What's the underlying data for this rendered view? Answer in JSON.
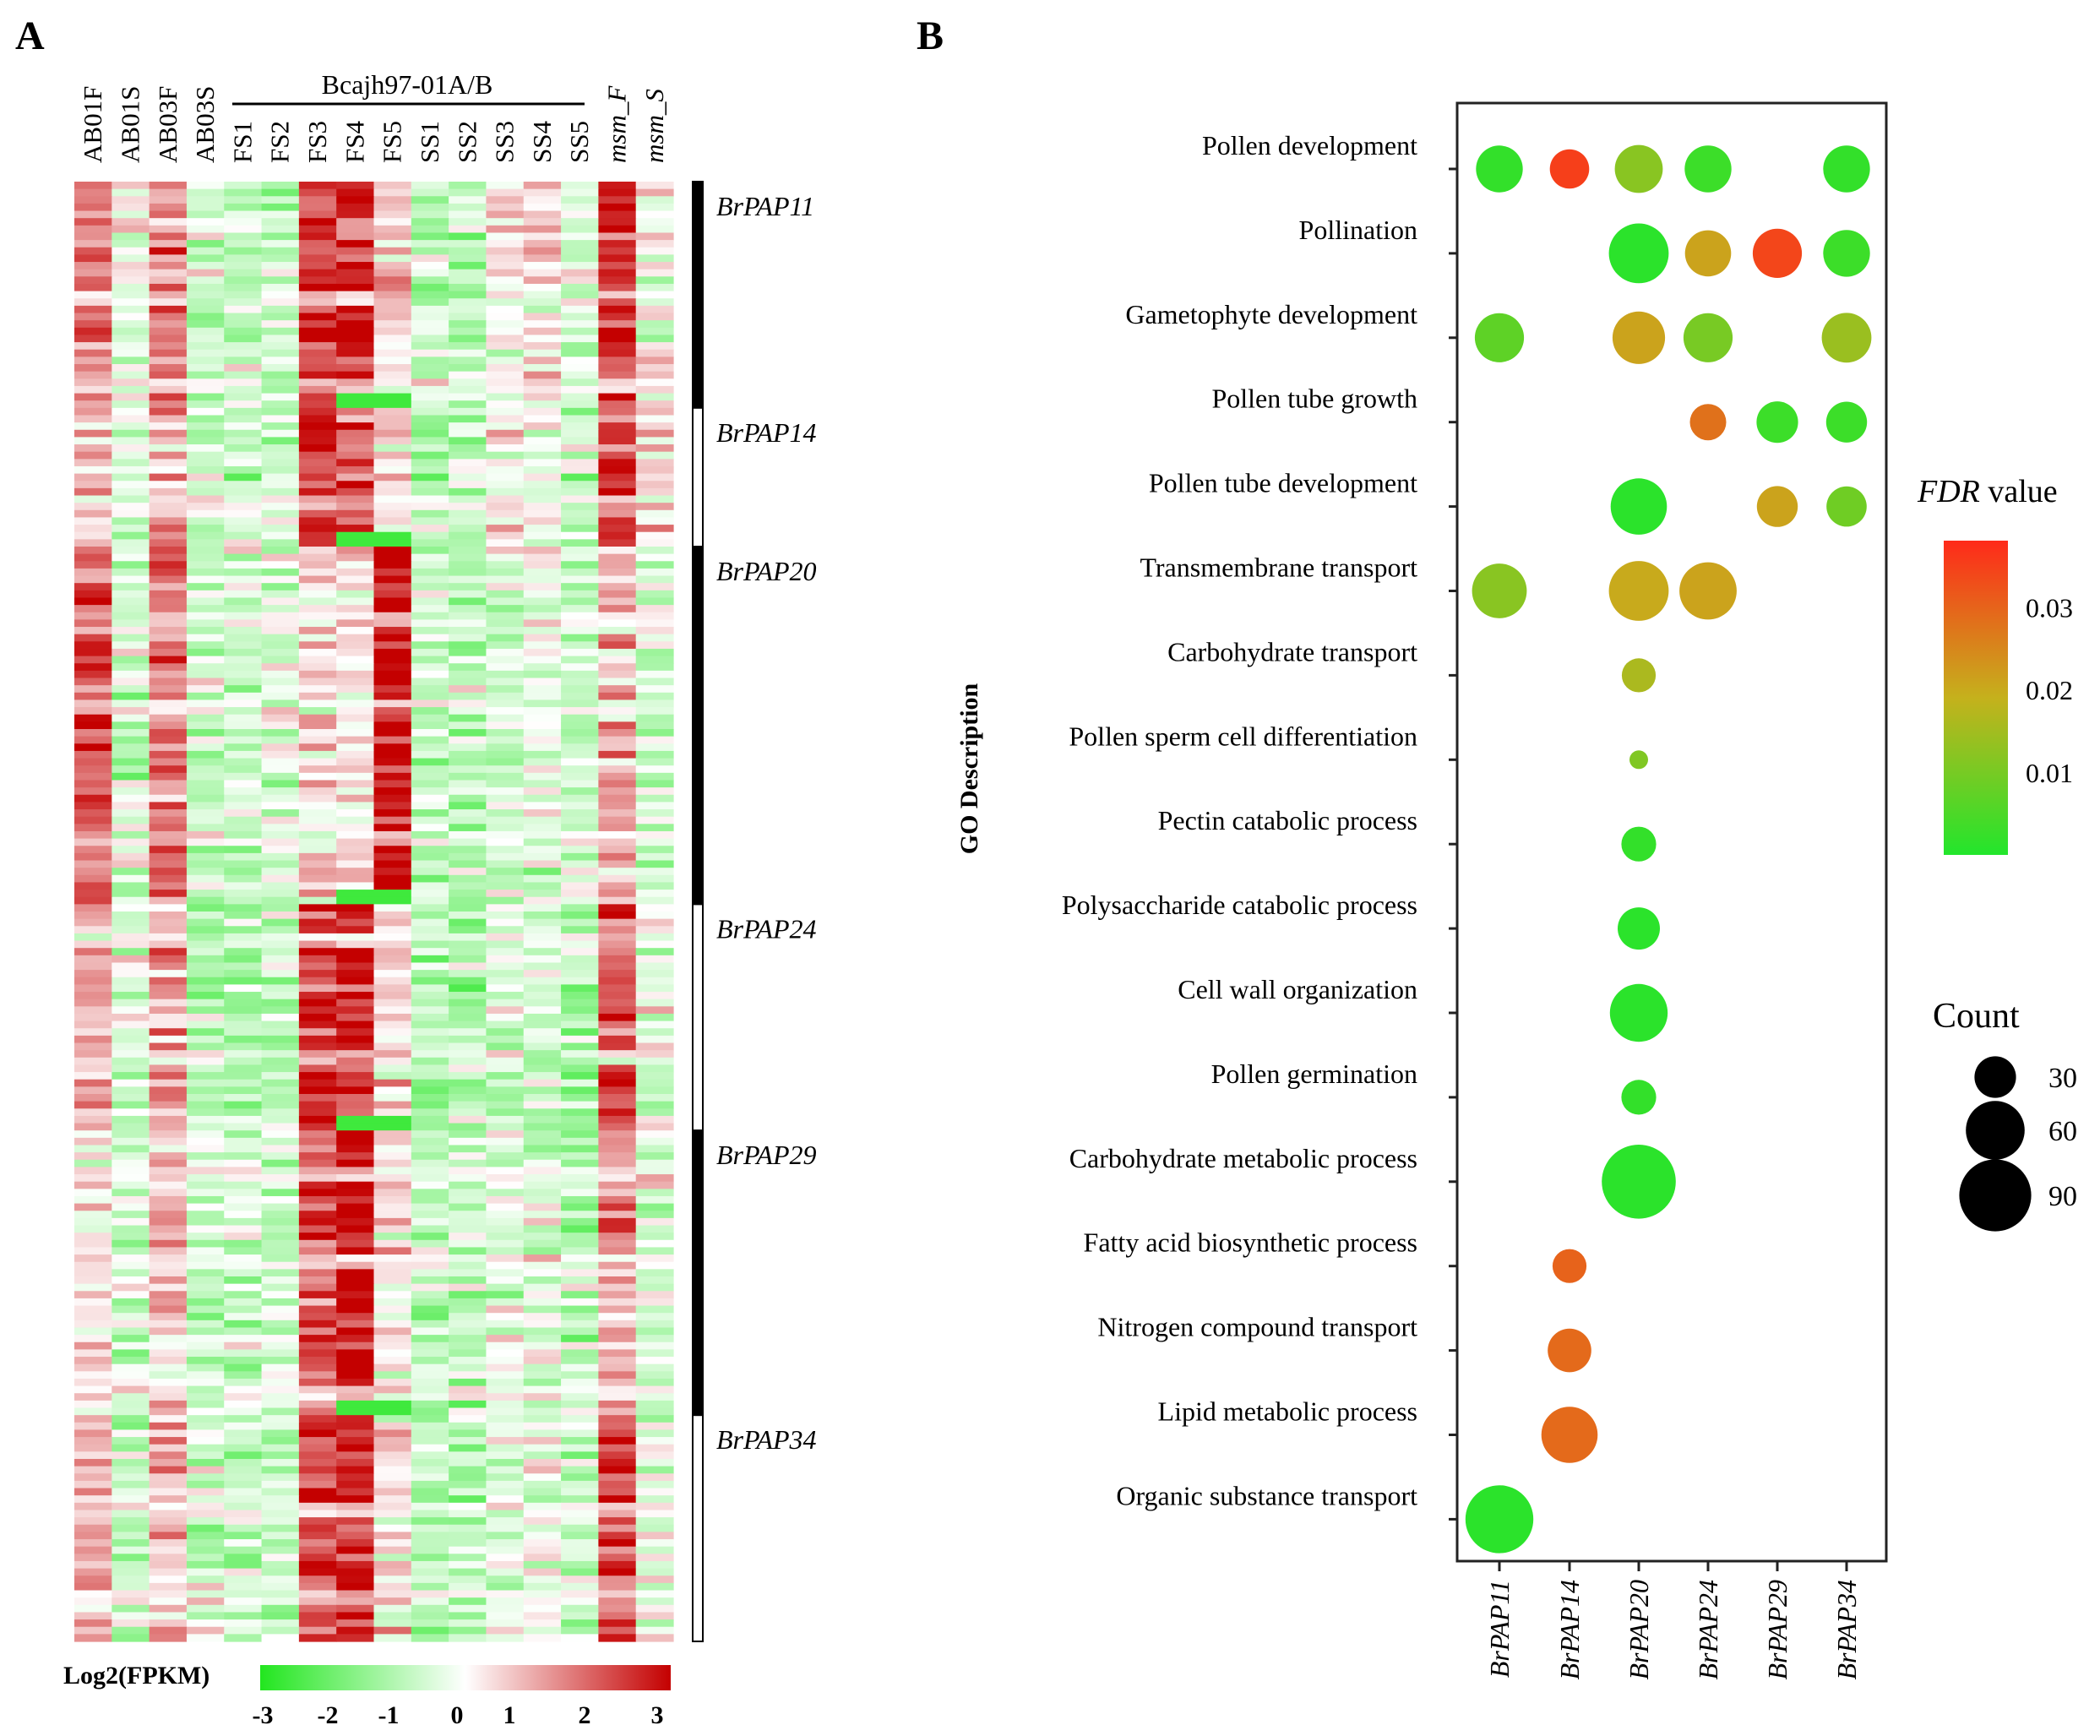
{
  "panels": {
    "a_label": "A",
    "b_label": "B"
  },
  "chart_data": [
    {
      "type": "heatmap",
      "panel": "A",
      "group_label": "Bcajh97-01A/B",
      "columns": [
        "AB01F",
        "AB01S",
        "AB03F",
        "AB03S",
        "FS1",
        "FS2",
        "FS3",
        "FS4",
        "FS5",
        "SS1",
        "SS2",
        "SS3",
        "SS4",
        "SS5",
        "msm_F",
        "msm_S"
      ],
      "row_clusters": [
        {
          "name": "BrPAP11",
          "fraction": 0.155,
          "fill": "black"
        },
        {
          "name": "BrPAP14",
          "fraction": 0.095,
          "fill": "white"
        },
        {
          "name": "BrPAP20",
          "fraction": 0.245,
          "fill": "black"
        },
        {
          "name": "BrPAP24",
          "fraction": 0.155,
          "fill": "white"
        },
        {
          "name": "BrPAP29",
          "fraction": 0.195,
          "fill": "black"
        },
        {
          "name": "BrPAP34",
          "fraction": 0.155,
          "fill": "white"
        }
      ],
      "cluster_means": [
        [
          1.6,
          -0.3,
          1.3,
          -0.6,
          -0.7,
          -0.8,
          2.2,
          2.4,
          0.6,
          -0.7,
          -0.8,
          0.2,
          0.3,
          -0.5,
          2.5,
          0.1
        ],
        [
          0.9,
          -0.6,
          1.0,
          -0.7,
          -0.8,
          -0.9,
          2.5,
          1.9,
          0.4,
          -0.9,
          -0.8,
          0.0,
          -0.4,
          -0.7,
          2.1,
          0.4
        ],
        [
          1.9,
          -0.6,
          1.7,
          -0.7,
          -0.7,
          -0.6,
          0.4,
          0.3,
          2.9,
          -0.8,
          -0.7,
          -0.4,
          -0.4,
          -0.7,
          1.0,
          -0.6
        ],
        [
          1.0,
          -0.5,
          1.0,
          -0.9,
          -1.0,
          -0.9,
          2.4,
          2.6,
          0.3,
          -1.0,
          -1.1,
          -0.5,
          -0.6,
          -1.0,
          2.2,
          -0.2
        ],
        [
          0.4,
          -0.6,
          0.8,
          -0.8,
          -0.8,
          -0.8,
          2.0,
          3.0,
          0.2,
          -0.8,
          -0.8,
          -0.4,
          -0.2,
          -0.8,
          1.2,
          -0.5
        ],
        [
          0.8,
          -0.5,
          0.9,
          -0.7,
          -0.7,
          -0.7,
          2.2,
          2.6,
          0.2,
          -0.9,
          -0.8,
          -0.4,
          -0.2,
          -0.7,
          2.3,
          -0.3
        ]
      ],
      "colorbar": {
        "title": "Log2(FPKM)",
        "ticks": [
          "-3",
          "-2",
          "-1",
          "0",
          "1",
          "2",
          "3"
        ],
        "range": [
          -3,
          3
        ],
        "colors": [
          "#22e61f",
          "#ffffff",
          "#c40000"
        ]
      }
    },
    {
      "type": "scatter",
      "subtype": "bubble",
      "panel": "B",
      "ylabel": "GO Description",
      "x_categories": [
        "BrPAP11",
        "BrPAP14",
        "BrPAP20",
        "BrPAP24",
        "BrPAP29",
        "BrPAP34"
      ],
      "y_categories": [
        "Pollen development",
        "Pollination",
        "Gametophyte development",
        "Pollen tube growth",
        "Pollen tube development",
        "Transmembrane transport",
        "Carbohydrate transport",
        "Pollen sperm cell differentiation",
        "Pectin catabolic process",
        "Polysaccharide catabolic process",
        "Cell wall organization",
        "Pollen germination",
        "Carbohydrate metabolic process",
        "Fatty acid biosynthetic process",
        "Nitrogen compound transport",
        "Lipid metabolic process",
        "Organic substance transport"
      ],
      "points": [
        {
          "x": "BrPAP11",
          "y": "Pollen development",
          "count": 38,
          "fdr": 0.002
        },
        {
          "x": "BrPAP14",
          "y": "Pollen development",
          "count": 27,
          "fdr": 0.035
        },
        {
          "x": "BrPAP20",
          "y": "Pollen development",
          "count": 40,
          "fdr": 0.012
        },
        {
          "x": "BrPAP24",
          "y": "Pollen development",
          "count": 38,
          "fdr": 0.003
        },
        {
          "x": "BrPAP34",
          "y": "Pollen development",
          "count": 38,
          "fdr": 0.002
        },
        {
          "x": "BrPAP20",
          "y": "Pollination",
          "count": 62,
          "fdr": 0.001
        },
        {
          "x": "BrPAP24",
          "y": "Pollination",
          "count": 37,
          "fdr": 0.021
        },
        {
          "x": "BrPAP29",
          "y": "Pollination",
          "count": 42,
          "fdr": 0.034
        },
        {
          "x": "BrPAP34",
          "y": "Pollination",
          "count": 38,
          "fdr": 0.003
        },
        {
          "x": "BrPAP11",
          "y": "Gametophyte development",
          "count": 42,
          "fdr": 0.007
        },
        {
          "x": "BrPAP20",
          "y": "Gametophyte development",
          "count": 48,
          "fdr": 0.021
        },
        {
          "x": "BrPAP24",
          "y": "Gametophyte development",
          "count": 42,
          "fdr": 0.01
        },
        {
          "x": "BrPAP34",
          "y": "Gametophyte development",
          "count": 43,
          "fdr": 0.014
        },
        {
          "x": "BrPAP24",
          "y": "Pollen tube growth",
          "count": 23,
          "fdr": 0.028
        },
        {
          "x": "BrPAP29",
          "y": "Pollen tube growth",
          "count": 30,
          "fdr": 0.003
        },
        {
          "x": "BrPAP34",
          "y": "Pollen tube growth",
          "count": 29,
          "fdr": 0.003
        },
        {
          "x": "BrPAP20",
          "y": "Pollen tube development",
          "count": 55,
          "fdr": 0.001
        },
        {
          "x": "BrPAP29",
          "y": "Pollen tube development",
          "count": 29,
          "fdr": 0.021
        },
        {
          "x": "BrPAP34",
          "y": "Pollen tube development",
          "count": 28,
          "fdr": 0.009
        },
        {
          "x": "BrPAP11",
          "y": "Transmembrane transport",
          "count": 52,
          "fdr": 0.012
        },
        {
          "x": "BrPAP20",
          "y": "Transmembrane transport",
          "count": 62,
          "fdr": 0.02
        },
        {
          "x": "BrPAP24",
          "y": "Transmembrane transport",
          "count": 57,
          "fdr": 0.021
        },
        {
          "x": "BrPAP20",
          "y": "Carbohydrate transport",
          "count": 20,
          "fdr": 0.016
        },
        {
          "x": "BrPAP20",
          "y": "Pollen sperm cell differentiation",
          "count": 6,
          "fdr": 0.011
        },
        {
          "x": "BrPAP20",
          "y": "Pectin catabolic process",
          "count": 21,
          "fdr": 0.002
        },
        {
          "x": "BrPAP20",
          "y": "Polysaccharide catabolic process",
          "count": 31,
          "fdr": 0.001
        },
        {
          "x": "BrPAP20",
          "y": "Cell wall organization",
          "count": 58,
          "fdr": 0.001
        },
        {
          "x": "BrPAP20",
          "y": "Pollen germination",
          "count": 21,
          "fdr": 0.002
        },
        {
          "x": "BrPAP20",
          "y": "Carbohydrate metabolic process",
          "count": 95,
          "fdr": 0.001
        },
        {
          "x": "BrPAP14",
          "y": "Fatty acid biosynthetic process",
          "count": 20,
          "fdr": 0.03
        },
        {
          "x": "BrPAP14",
          "y": "Nitrogen compound transport",
          "count": 33,
          "fdr": 0.029
        },
        {
          "x": "BrPAP14",
          "y": "Lipid metabolic process",
          "count": 55,
          "fdr": 0.029
        },
        {
          "x": "BrPAP11",
          "y": "Organic substance transport",
          "count": 80,
          "fdr": 0.001
        }
      ],
      "color_legend": {
        "title_italic": "FDR",
        "title_rest": " value",
        "ticks": [
          {
            "label": "0.03",
            "value": 0.03
          },
          {
            "label": "0.02",
            "value": 0.02
          },
          {
            "label": "0.01",
            "value": 0.01
          }
        ],
        "range": [
          0.0,
          0.038
        ],
        "colors": [
          "#22e62c",
          "#c5b11c",
          "#ff2a1a"
        ]
      },
      "size_legend": {
        "title": "Count",
        "items": [
          {
            "label": "30",
            "value": 30
          },
          {
            "label": "60",
            "value": 60
          },
          {
            "label": "90",
            "value": 90
          }
        ]
      }
    }
  ]
}
